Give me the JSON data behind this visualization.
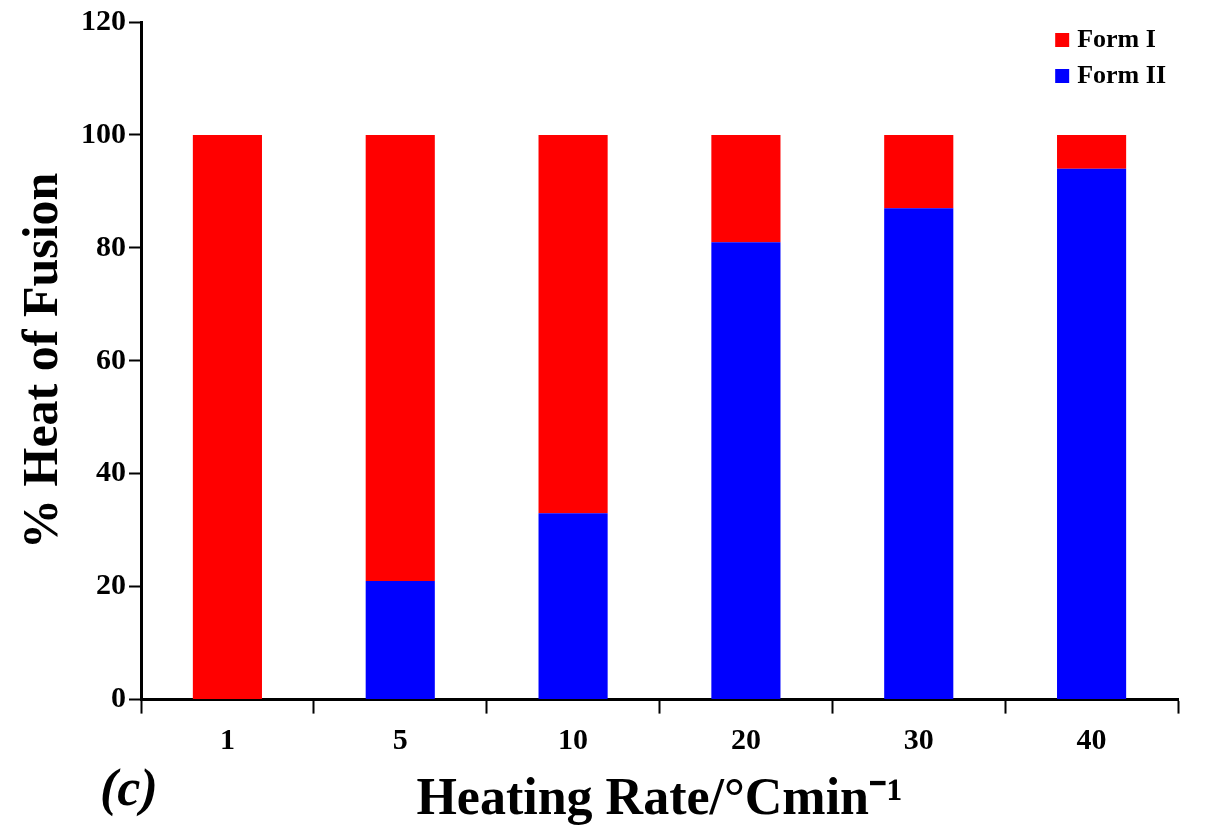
{
  "chart_data": {
    "type": "bar",
    "stacked": true,
    "categories": [
      "1",
      "5",
      "10",
      "20",
      "30",
      "40"
    ],
    "series": [
      {
        "name": "Form II",
        "color": "#0000ff",
        "values": [
          0,
          21,
          33,
          81,
          87,
          94
        ]
      },
      {
        "name": "Form I",
        "color": "#ff0000",
        "values": [
          100,
          79,
          67,
          19,
          13,
          6
        ]
      }
    ],
    "xlabel": "Heating Rate/°Cmin⁻¹",
    "ylabel": "% Heat of Fusion",
    "ylim": [
      0,
      120
    ],
    "yticks": [
      0,
      20,
      40,
      60,
      80,
      100,
      120
    ],
    "grid": false,
    "legend": "top right",
    "annotations": [
      "(c)"
    ]
  }
}
